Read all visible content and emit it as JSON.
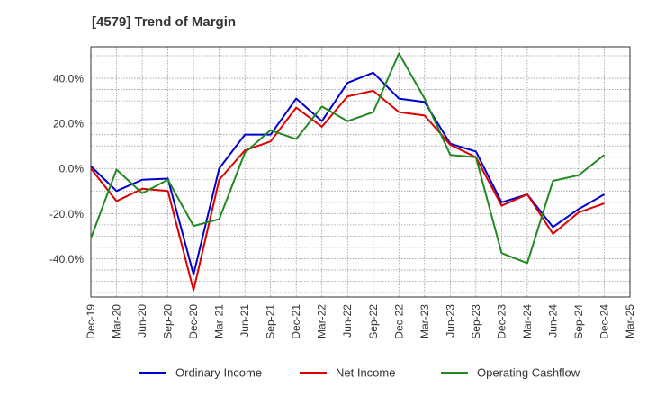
{
  "chart_data": {
    "type": "line",
    "title": "[4579]  Trend of Margin",
    "xlabel": "",
    "ylabel": "",
    "categories": [
      "Dec-19",
      "Mar-20",
      "Jun-20",
      "Sep-20",
      "Dec-20",
      "Mar-21",
      "Jun-21",
      "Sep-21",
      "Dec-21",
      "Mar-22",
      "Jun-22",
      "Sep-22",
      "Dec-22",
      "Mar-23",
      "Jun-23",
      "Sep-23",
      "Dec-23",
      "Mar-24",
      "Jun-24",
      "Sep-24",
      "Dec-24",
      "Mar-25"
    ],
    "x_tick_labels": [
      "Dec-19",
      "Mar-20",
      "Jun-20",
      "Sep-20",
      "Dec-20",
      "Mar-21",
      "Jun-21",
      "Sep-21",
      "Dec-21",
      "Mar-22",
      "Jun-22",
      "Sep-22",
      "Dec-22",
      "Mar-23",
      "Jun-23",
      "Sep-23",
      "Dec-23",
      "Mar-24",
      "Jun-24",
      "Sep-24",
      "Dec-24",
      "Mar-25"
    ],
    "y_tick_labels": [
      "40.0%",
      "20.0%",
      "0.0%",
      "-20.0%",
      "-40.0%"
    ],
    "y_ticks": [
      40,
      20,
      0,
      -20,
      -40
    ],
    "ylim": [
      -57,
      54
    ],
    "grid": true,
    "legend_position": "bottom",
    "series": [
      {
        "name": "Ordinary Income",
        "color": "#0000cc",
        "values": [
          1,
          -10,
          -5,
          -4.5,
          -47,
          0,
          15,
          15,
          31,
          21,
          38,
          42.5,
          31,
          29.5,
          11,
          7.5,
          -15,
          -11.5,
          -26,
          -18,
          -11.5,
          null
        ]
      },
      {
        "name": "Net Income",
        "color": "#dd0000",
        "values": [
          0,
          -14.5,
          -9,
          -10,
          -54,
          -5,
          8,
          12,
          27,
          18.5,
          32,
          34.5,
          25,
          23.5,
          10.5,
          5,
          -16.5,
          -11.5,
          -29,
          -19.5,
          -15.5,
          null
        ]
      },
      {
        "name": "Operating Cashflow",
        "color": "#228822",
        "values": [
          -31,
          -0.5,
          -11,
          -5,
          -25.5,
          -22.5,
          7,
          17,
          13,
          27.5,
          21,
          25,
          51,
          31,
          6,
          5,
          -37.5,
          -42,
          -5.5,
          -3,
          6,
          null
        ]
      }
    ]
  }
}
